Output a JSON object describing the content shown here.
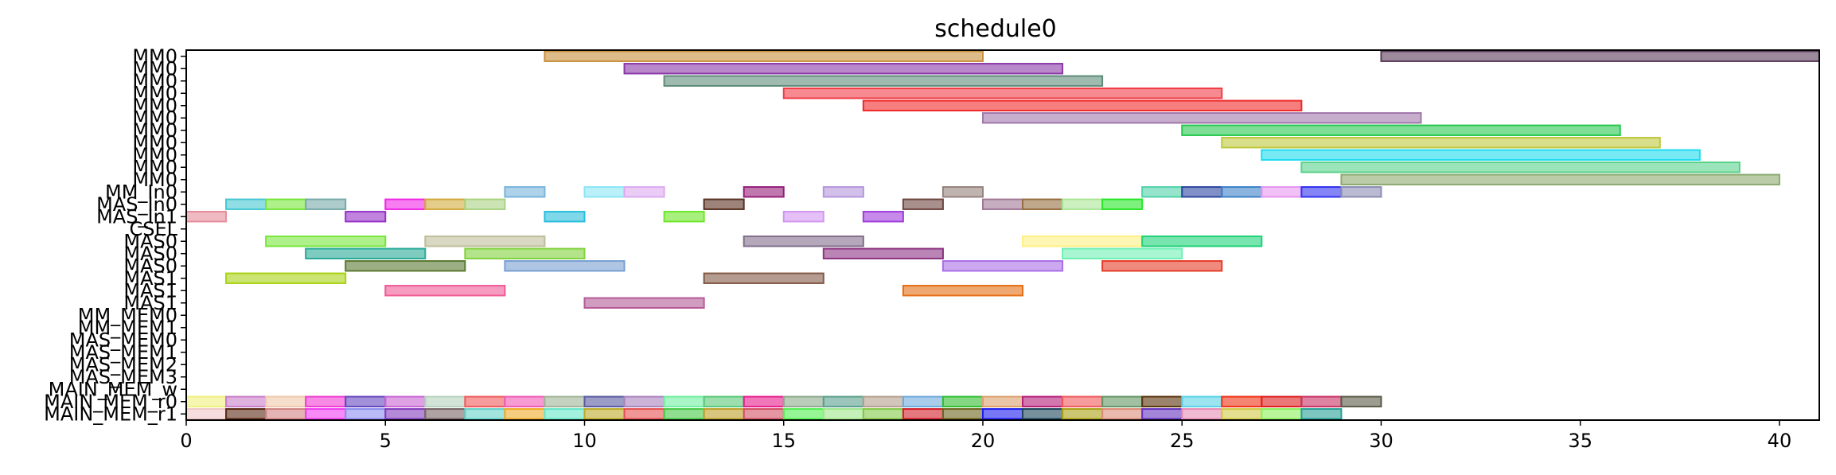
{
  "chart_data": {
    "type": "gantt",
    "title": "schedule0",
    "xlim": [
      0,
      41
    ],
    "x_ticks": [
      0,
      5,
      10,
      15,
      20,
      25,
      30,
      35,
      40
    ],
    "rows": [
      "MM0",
      "MM0",
      "MM0",
      "MM0",
      "MM0",
      "MM0",
      "MM0",
      "MM0",
      "MM0",
      "MM0",
      "MM0",
      "MM_In0",
      "MAS_In0",
      "MAS_In1",
      "CSEL",
      "MAS0",
      "MAS0",
      "MAS0",
      "MAS1",
      "MAS1",
      "MAS1",
      "MM_MEM0",
      "MM_MEM1",
      "MAS_MEM0",
      "MAS_MEM1",
      "MAS_MEM2",
      "MAS_MEM3",
      "MAIN_MEM_w",
      "MAIN_MEM_r0",
      "MAIN_MEM_r1"
    ],
    "bars": [
      {
        "row": 0,
        "start": 9,
        "end": 20,
        "color": "#c8903c"
      },
      {
        "row": 0,
        "start": 30,
        "end": 41,
        "color": "#5a3c5a"
      },
      {
        "row": 1,
        "start": 11,
        "end": 22,
        "color": "#8a38a8"
      },
      {
        "row": 2,
        "start": 12,
        "end": 23,
        "color": "#5f8c7a"
      },
      {
        "row": 3,
        "start": 15,
        "end": 26,
        "color": "#f03c46"
      },
      {
        "row": 4,
        "start": 17,
        "end": 28,
        "color": "#f02828"
      },
      {
        "row": 5,
        "start": 20,
        "end": 31,
        "color": "#a078aa"
      },
      {
        "row": 6,
        "start": 25,
        "end": 36,
        "color": "#28c850"
      },
      {
        "row": 7,
        "start": 26,
        "end": 37,
        "color": "#bec83c"
      },
      {
        "row": 8,
        "start": 27,
        "end": 38,
        "color": "#1edcf0"
      },
      {
        "row": 9,
        "start": 28,
        "end": 39,
        "color": "#5ad28c"
      },
      {
        "row": 10,
        "start": 29,
        "end": 40,
        "color": "#8caa6e"
      },
      {
        "row": 11,
        "start": 8,
        "end": 9,
        "color": "#78b4dc"
      },
      {
        "row": 11,
        "start": 10,
        "end": 11,
        "color": "#8ce6f5"
      },
      {
        "row": 11,
        "start": 11,
        "end": 12,
        "color": "#dcaaf0"
      },
      {
        "row": 11,
        "start": 14,
        "end": 15,
        "color": "#961e78"
      },
      {
        "row": 11,
        "start": 16,
        "end": 17,
        "color": "#b496dc"
      },
      {
        "row": 11,
        "start": 19,
        "end": 20,
        "color": "#96827d"
      },
      {
        "row": 11,
        "start": 24,
        "end": 25,
        "color": "#50d2aa"
      },
      {
        "row": 11,
        "start": 25,
        "end": 26,
        "color": "#2d46a0"
      },
      {
        "row": 11,
        "start": 26,
        "end": 27,
        "color": "#3c82c8"
      },
      {
        "row": 11,
        "start": 27,
        "end": 28,
        "color": "#e696f0"
      },
      {
        "row": 11,
        "start": 28,
        "end": 29,
        "color": "#3232f0"
      },
      {
        "row": 11,
        "start": 29,
        "end": 30,
        "color": "#8c8cb4"
      },
      {
        "row": 12,
        "start": 1,
        "end": 2,
        "color": "#46c8d2"
      },
      {
        "row": 12,
        "start": 2,
        "end": 3,
        "color": "#78e63c"
      },
      {
        "row": 12,
        "start": 3,
        "end": 4,
        "color": "#78aaaa"
      },
      {
        "row": 12,
        "start": 5,
        "end": 6,
        "color": "#f028e6"
      },
      {
        "row": 12,
        "start": 6,
        "end": 7,
        "color": "#d2aa3c"
      },
      {
        "row": 12,
        "start": 7,
        "end": 8,
        "color": "#aad282"
      },
      {
        "row": 12,
        "start": 13,
        "end": 14,
        "color": "#5a3223"
      },
      {
        "row": 12,
        "start": 18,
        "end": 19,
        "color": "#6e4641"
      },
      {
        "row": 12,
        "start": 20,
        "end": 21,
        "color": "#a07896"
      },
      {
        "row": 12,
        "start": 21,
        "end": 22,
        "color": "#966e41"
      },
      {
        "row": 12,
        "start": 22,
        "end": 23,
        "color": "#aae696"
      },
      {
        "row": 12,
        "start": 23,
        "end": 24,
        "color": "#28e628"
      },
      {
        "row": 13,
        "start": 0,
        "end": 1,
        "color": "#e68c9b"
      },
      {
        "row": 13,
        "start": 4,
        "end": 5,
        "color": "#9632c8"
      },
      {
        "row": 13,
        "start": 9,
        "end": 10,
        "color": "#28bedc"
      },
      {
        "row": 13,
        "start": 12,
        "end": 13,
        "color": "#6ee628"
      },
      {
        "row": 13,
        "start": 15,
        "end": 16,
        "color": "#d296f0"
      },
      {
        "row": 13,
        "start": 17,
        "end": 18,
        "color": "#a03cdc"
      },
      {
        "row": 15,
        "start": 2,
        "end": 5,
        "color": "#78e63c"
      },
      {
        "row": 15,
        "start": 6,
        "end": 9,
        "color": "#bebe9b"
      },
      {
        "row": 15,
        "start": 14,
        "end": 17,
        "color": "#826e8c"
      },
      {
        "row": 15,
        "start": 21,
        "end": 24,
        "color": "#fff082"
      },
      {
        "row": 15,
        "start": 24,
        "end": 27,
        "color": "#1ed278"
      },
      {
        "row": 16,
        "start": 3,
        "end": 6,
        "color": "#28aa96"
      },
      {
        "row": 16,
        "start": 7,
        "end": 10,
        "color": "#82d23c"
      },
      {
        "row": 16,
        "start": 16,
        "end": 19,
        "color": "#8c3282"
      },
      {
        "row": 16,
        "start": 22,
        "end": 25,
        "color": "#6ef0b4"
      },
      {
        "row": 17,
        "start": 4,
        "end": 7,
        "color": "#5a7832"
      },
      {
        "row": 17,
        "start": 8,
        "end": 11,
        "color": "#78a0d2"
      },
      {
        "row": 17,
        "start": 19,
        "end": 22,
        "color": "#aa6ee6"
      },
      {
        "row": 17,
        "start": 23,
        "end": 26,
        "color": "#e63c28"
      },
      {
        "row": 18,
        "start": 1,
        "end": 4,
        "color": "#aad214"
      },
      {
        "row": 18,
        "start": 13,
        "end": 16,
        "color": "#825a46"
      },
      {
        "row": 19,
        "start": 5,
        "end": 8,
        "color": "#f05a96"
      },
      {
        "row": 19,
        "start": 18,
        "end": 21,
        "color": "#e66e14"
      },
      {
        "row": 20,
        "start": 10,
        "end": 13,
        "color": "#b45a96"
      },
      {
        "row": 28,
        "start": 0,
        "end": 1,
        "color": "#f0f07d"
      },
      {
        "row": 28,
        "start": 1,
        "end": 2,
        "color": "#c87dc8"
      },
      {
        "row": 28,
        "start": 2,
        "end": 3,
        "color": "#f0c8aa"
      },
      {
        "row": 28,
        "start": 3,
        "end": 4,
        "color": "#f03cd2"
      },
      {
        "row": 28,
        "start": 4,
        "end": 5,
        "color": "#6446be"
      },
      {
        "row": 28,
        "start": 5,
        "end": 6,
        "color": "#c864d2"
      },
      {
        "row": 28,
        "start": 6,
        "end": 7,
        "color": "#b4d2be"
      },
      {
        "row": 28,
        "start": 7,
        "end": 8,
        "color": "#f05a5a"
      },
      {
        "row": 28,
        "start": 8,
        "end": 9,
        "color": "#f05ab4"
      },
      {
        "row": 28,
        "start": 9,
        "end": 10,
        "color": "#a0b496"
      },
      {
        "row": 28,
        "start": 10,
        "end": 11,
        "color": "#5a5aa0"
      },
      {
        "row": 28,
        "start": 11,
        "end": 12,
        "color": "#aa82be"
      },
      {
        "row": 28,
        "start": 12,
        "end": 13,
        "color": "#6ef0a0"
      },
      {
        "row": 28,
        "start": 13,
        "end": 14,
        "color": "#5ac878"
      },
      {
        "row": 28,
        "start": 14,
        "end": 15,
        "color": "#e61e8c"
      },
      {
        "row": 28,
        "start": 15,
        "end": 16,
        "color": "#8caa8c"
      },
      {
        "row": 28,
        "start": 16,
        "end": 17,
        "color": "#5aa08c"
      },
      {
        "row": 28,
        "start": 17,
        "end": 18,
        "color": "#b4a08c"
      },
      {
        "row": 28,
        "start": 18,
        "end": 19,
        "color": "#6eaadc"
      },
      {
        "row": 28,
        "start": 19,
        "end": 20,
        "color": "#32be32"
      },
      {
        "row": 28,
        "start": 20,
        "end": 21,
        "color": "#dca06e"
      },
      {
        "row": 28,
        "start": 21,
        "end": 22,
        "color": "#b41e78"
      },
      {
        "row": 28,
        "start": 22,
        "end": 23,
        "color": "#f05a5a"
      },
      {
        "row": 28,
        "start": 23,
        "end": 24,
        "color": "#649664"
      },
      {
        "row": 28,
        "start": 24,
        "end": 25,
        "color": "#5a320a"
      },
      {
        "row": 28,
        "start": 25,
        "end": 26,
        "color": "#5ad2e6"
      },
      {
        "row": 28,
        "start": 26,
        "end": 27,
        "color": "#f03214"
      },
      {
        "row": 28,
        "start": 27,
        "end": 28,
        "color": "#dc1e1e"
      },
      {
        "row": 28,
        "start": 28,
        "end": 29,
        "color": "#c83264"
      },
      {
        "row": 28,
        "start": 29,
        "end": 30,
        "color": "#5a5a46"
      },
      {
        "row": 29,
        "start": 0,
        "end": 1,
        "color": "#f0c8c8"
      },
      {
        "row": 29,
        "start": 1,
        "end": 2,
        "color": "#5a2814"
      },
      {
        "row": 29,
        "start": 2,
        "end": 3,
        "color": "#d28282"
      },
      {
        "row": 29,
        "start": 3,
        "end": 4,
        "color": "#f03cf0"
      },
      {
        "row": 29,
        "start": 4,
        "end": 5,
        "color": "#8c8cf0"
      },
      {
        "row": 29,
        "start": 5,
        "end": 6,
        "color": "#823cbe"
      },
      {
        "row": 29,
        "start": 6,
        "end": 7,
        "color": "#786464"
      },
      {
        "row": 29,
        "start": 7,
        "end": 8,
        "color": "#64d2c8"
      },
      {
        "row": 29,
        "start": 8,
        "end": 9,
        "color": "#f0aa28"
      },
      {
        "row": 29,
        "start": 9,
        "end": 10,
        "color": "#64e6c8"
      },
      {
        "row": 29,
        "start": 10,
        "end": 11,
        "color": "#beaa28"
      },
      {
        "row": 29,
        "start": 11,
        "end": 12,
        "color": "#e65050"
      },
      {
        "row": 29,
        "start": 12,
        "end": 13,
        "color": "#46c846"
      },
      {
        "row": 29,
        "start": 13,
        "end": 14,
        "color": "#bea028"
      },
      {
        "row": 29,
        "start": 14,
        "end": 15,
        "color": "#d25064"
      },
      {
        "row": 29,
        "start": 15,
        "end": 16,
        "color": "#50f050"
      },
      {
        "row": 29,
        "start": 16,
        "end": 17,
        "color": "#a0e68c"
      },
      {
        "row": 29,
        "start": 17,
        "end": 18,
        "color": "#82c846"
      },
      {
        "row": 29,
        "start": 18,
        "end": 19,
        "color": "#d21e28"
      },
      {
        "row": 29,
        "start": 19,
        "end": 20,
        "color": "#6e641e"
      },
      {
        "row": 29,
        "start": 20,
        "end": 21,
        "color": "#1e1ef0"
      },
      {
        "row": 29,
        "start": 21,
        "end": 22,
        "color": "#1e465a"
      },
      {
        "row": 29,
        "start": 22,
        "end": 23,
        "color": "#aaa014"
      },
      {
        "row": 29,
        "start": 23,
        "end": 24,
        "color": "#dc8c78"
      },
      {
        "row": 29,
        "start": 24,
        "end": 25,
        "color": "#6432be"
      },
      {
        "row": 29,
        "start": 25,
        "end": 26,
        "color": "#e68cb4"
      },
      {
        "row": 29,
        "start": 26,
        "end": 27,
        "color": "#d2c846"
      },
      {
        "row": 29,
        "start": 27,
        "end": 28,
        "color": "#8cf05a"
      },
      {
        "row": 29,
        "start": 28,
        "end": 29,
        "color": "#28a096"
      }
    ]
  }
}
